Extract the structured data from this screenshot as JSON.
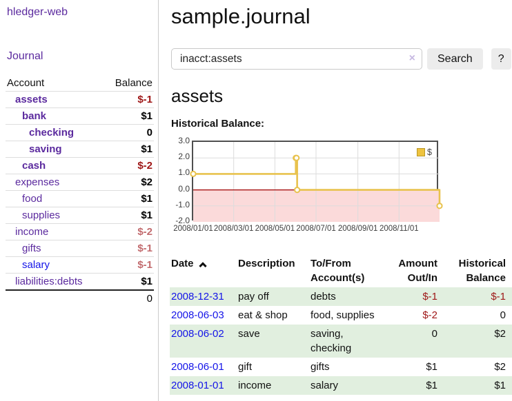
{
  "sidebar": {
    "brand": "hledger-web",
    "journal_link": "Journal",
    "accounts_header": {
      "account": "Account",
      "balance": "Balance"
    },
    "accounts": [
      {
        "name": "assets",
        "depth": 0,
        "balance": "$-1",
        "emph": true,
        "name_style": "purple",
        "balance_style": "neg-strong"
      },
      {
        "name": "bank",
        "depth": 1,
        "balance": "$1",
        "emph": true,
        "name_style": "purple",
        "balance_style": "pos"
      },
      {
        "name": "checking",
        "depth": 2,
        "balance": "0",
        "emph": true,
        "name_style": "purple",
        "balance_style": "pos"
      },
      {
        "name": "saving",
        "depth": 2,
        "balance": "$1",
        "emph": true,
        "name_style": "purple",
        "balance_style": "pos"
      },
      {
        "name": "cash",
        "depth": 1,
        "balance": "$-2",
        "emph": true,
        "name_style": "purple",
        "balance_style": "neg-strong"
      },
      {
        "name": "expenses",
        "depth": 0,
        "balance": "$2",
        "emph": false,
        "name_style": "purple",
        "balance_style": "pos"
      },
      {
        "name": "food",
        "depth": 1,
        "balance": "$1",
        "emph": false,
        "name_style": "purple",
        "balance_style": "pos"
      },
      {
        "name": "supplies",
        "depth": 1,
        "balance": "$1",
        "emph": false,
        "name_style": "purple",
        "balance_style": "pos"
      },
      {
        "name": "income",
        "depth": 0,
        "balance": "$-2",
        "emph": false,
        "name_style": "purple",
        "balance_style": "neg-soft"
      },
      {
        "name": "gifts",
        "depth": 1,
        "balance": "$-1",
        "emph": false,
        "name_style": "purple",
        "balance_style": "neg-soft"
      },
      {
        "name": "salary",
        "depth": 1,
        "balance": "$-1",
        "emph": false,
        "name_style": "blue",
        "balance_style": "neg-soft"
      },
      {
        "name": "liabilities:debts",
        "depth": 0,
        "balance": "$1",
        "emph": false,
        "name_style": "purple",
        "balance_style": "pos"
      }
    ],
    "total": "0"
  },
  "header": {
    "title": "sample.journal"
  },
  "search": {
    "value": "inacct:assets",
    "clear_icon": "×",
    "button": "Search",
    "help_button": "?"
  },
  "account_page": {
    "heading": "assets",
    "chart_label": "Historical Balance:"
  },
  "chart_data": {
    "type": "line",
    "step": "after",
    "series": [
      {
        "name": "$",
        "x": [
          "2008-01-01",
          "2008-06-01",
          "2008-06-02",
          "2008-06-03",
          "2008-12-31"
        ],
        "values": [
          1,
          2,
          2,
          0,
          -1
        ]
      }
    ],
    "x_range": [
      "2008-01-01",
      "2008-12-31"
    ],
    "ylim": [
      -2,
      3
    ],
    "y_ticks": [
      {
        "label": "3.0",
        "value": 3
      },
      {
        "label": "2.0",
        "value": 2
      },
      {
        "label": "1.0",
        "value": 1
      },
      {
        "label": "0.0",
        "value": 0
      },
      {
        "label": "-1.0",
        "value": -1
      },
      {
        "label": "-2.0",
        "value": -2
      }
    ],
    "x_ticks": [
      {
        "label": "2008/01/01",
        "date": "2008-01-01"
      },
      {
        "label": "2008/03/01",
        "date": "2008-03-01"
      },
      {
        "label": "2008/05/01",
        "date": "2008-05-01"
      },
      {
        "label": "2008/07/01",
        "date": "2008-07-01"
      },
      {
        "label": "2008/09/01",
        "date": "2008-09-01"
      },
      {
        "label": "2008/11/01",
        "date": "2008-11-01"
      }
    ],
    "legend": {
      "label": "$",
      "position": "top-right"
    },
    "grid": true,
    "colors": {
      "line": "#e8c24d",
      "marker_fill": "#ffffff",
      "negative_region": "#fbdada",
      "zero_line": "#a00000",
      "gridline": "#dcdcdc",
      "legend_fill": "#eec33f",
      "legend_border": "#b99726"
    }
  },
  "register": {
    "columns": [
      "Date",
      "Description",
      "To/From Account(s)",
      "Amount Out/In",
      "Historical Balance"
    ],
    "rows": [
      {
        "date": "2008-12-31",
        "description": "pay off",
        "accounts": "debts",
        "amount": "$-1",
        "amount_neg": true,
        "balance": "$-1",
        "balance_neg": true
      },
      {
        "date": "2008-06-03",
        "description": "eat & shop",
        "accounts": "food, supplies",
        "amount": "$-2",
        "amount_neg": true,
        "balance": "0",
        "balance_neg": false
      },
      {
        "date": "2008-06-02",
        "description": "save",
        "accounts": "saving, checking",
        "amount": "0",
        "amount_neg": false,
        "balance": "$2",
        "balance_neg": false
      },
      {
        "date": "2008-06-01",
        "description": "gift",
        "accounts": "gifts",
        "amount": "$1",
        "amount_neg": false,
        "balance": "$2",
        "balance_neg": false
      },
      {
        "date": "2008-01-01",
        "description": "income",
        "accounts": "salary",
        "amount": "$1",
        "amount_neg": false,
        "balance": "$1",
        "balance_neg": false
      }
    ]
  }
}
